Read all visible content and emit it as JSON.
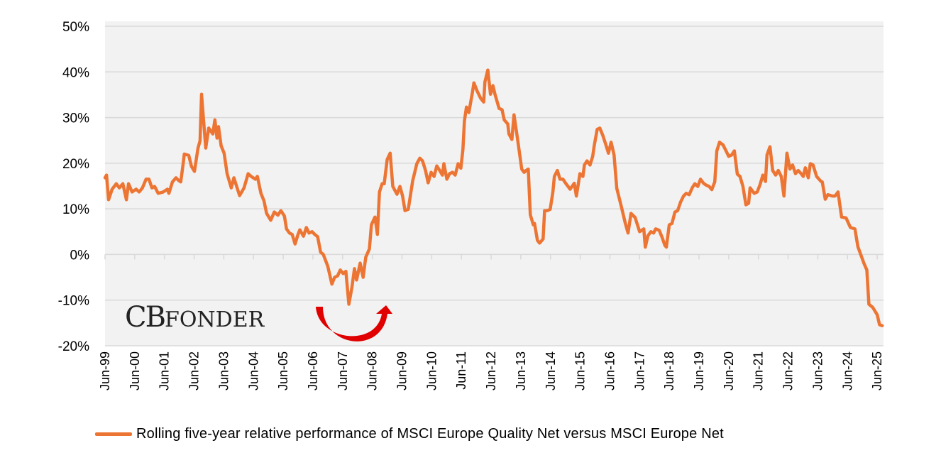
{
  "logo": {
    "text_big": "CB",
    "text_small": "FONDER"
  },
  "colors": {
    "line": "#ED7534",
    "plot_bg": "#F2F2F2",
    "grid": "#D9D9D9",
    "arrow": "#E00000"
  },
  "annotation": {
    "icon": "red-curved-rebound-arrow"
  },
  "chart_data": {
    "type": "line",
    "title": "",
    "xlabel": "",
    "ylabel": "",
    "ylim": [
      -20,
      50
    ],
    "yticks": [
      -20,
      -10,
      0,
      10,
      20,
      30,
      40,
      50
    ],
    "ytick_labels": [
      "-20%",
      "-10%",
      "0%",
      "10%",
      "20%",
      "30%",
      "40%",
      "50%"
    ],
    "xlim": [
      1999.5,
      2025.7
    ],
    "xtick_labels": [
      "Jun-99",
      "Jun-00",
      "Jun-01",
      "Jun-02",
      "Jun-03",
      "Jun-04",
      "Jun-05",
      "Jun-06",
      "Jun-07",
      "Jun-08",
      "Jun-09",
      "Jun-10",
      "Jun-11",
      "Jun-12",
      "Jun-13",
      "Jun-14",
      "Jun-15",
      "Jun-16",
      "Jun-17",
      "Jun-18",
      "Jun-19",
      "Jun-20",
      "Jun-21",
      "Jun-22",
      "Jun-23",
      "Jun-24",
      "Jun-25"
    ],
    "grid": true,
    "legend_position": "bottom",
    "series": [
      {
        "name": "Rolling five-year relative performance of MSCI Europe Quality Net versus MSCI Europe Net",
        "points": [
          [
            1999.5,
            16.8
          ],
          [
            1999.55,
            17.4
          ],
          [
            1999.62,
            12
          ],
          [
            1999.74,
            14.3
          ],
          [
            1999.88,
            15.5
          ],
          [
            1999.98,
            14.6
          ],
          [
            2000.1,
            15.5
          ],
          [
            2000.22,
            12
          ],
          [
            2000.29,
            15.5
          ],
          [
            2000.41,
            13.7
          ],
          [
            2000.55,
            14.3
          ],
          [
            2000.65,
            13.7
          ],
          [
            2000.76,
            14.6
          ],
          [
            2000.88,
            16.5
          ],
          [
            2000.98,
            16.5
          ],
          [
            2001.08,
            14.6
          ],
          [
            2001.17,
            14.9
          ],
          [
            2001.29,
            13.4
          ],
          [
            2001.46,
            13.7
          ],
          [
            2001.6,
            14.3
          ],
          [
            2001.65,
            13.4
          ],
          [
            2001.77,
            15.9
          ],
          [
            2001.89,
            16.8
          ],
          [
            2001.98,
            16.2
          ],
          [
            2002.05,
            15.9
          ],
          [
            2002.13,
            19.9
          ],
          [
            2002.17,
            22
          ],
          [
            2002.32,
            21.7
          ],
          [
            2002.41,
            19.3
          ],
          [
            2002.51,
            18.2
          ],
          [
            2002.63,
            23.3
          ],
          [
            2002.7,
            24.9
          ],
          [
            2002.75,
            35.1
          ],
          [
            2002.89,
            23.3
          ],
          [
            2002.99,
            27.7
          ],
          [
            2003.13,
            26.4
          ],
          [
            2003.2,
            29.5
          ],
          [
            2003.27,
            25.5
          ],
          [
            2003.32,
            28
          ],
          [
            2003.41,
            23.8
          ],
          [
            2003.51,
            22.2
          ],
          [
            2003.61,
            17.7
          ],
          [
            2003.75,
            14.6
          ],
          [
            2003.84,
            16.8
          ],
          [
            2004.03,
            12.9
          ],
          [
            2004.18,
            14.6
          ],
          [
            2004.32,
            17.7
          ],
          [
            2004.42,
            17.1
          ],
          [
            2004.56,
            16.5
          ],
          [
            2004.63,
            17.1
          ],
          [
            2004.75,
            13.4
          ],
          [
            2004.85,
            11.8
          ],
          [
            2004.94,
            9
          ],
          [
            2005.08,
            7.5
          ],
          [
            2005.2,
            9.3
          ],
          [
            2005.32,
            8.6
          ],
          [
            2005.42,
            9.6
          ],
          [
            2005.54,
            8.4
          ],
          [
            2005.61,
            5.6
          ],
          [
            2005.71,
            4.7
          ],
          [
            2005.8,
            4.4
          ],
          [
            2005.9,
            2.3
          ],
          [
            2006.0,
            4.4
          ],
          [
            2006.06,
            5.4
          ],
          [
            2006.18,
            4
          ],
          [
            2006.28,
            5.9
          ],
          [
            2006.37,
            4.7
          ],
          [
            2006.47,
            5
          ],
          [
            2006.56,
            4.4
          ],
          [
            2006.66,
            3.9
          ],
          [
            2006.76,
            0.5
          ],
          [
            2006.85,
            0
          ],
          [
            2007.0,
            -2.6
          ],
          [
            2007.14,
            -6.5
          ],
          [
            2007.23,
            -5
          ],
          [
            2007.33,
            -4.7
          ],
          [
            2007.42,
            -3.4
          ],
          [
            2007.52,
            -4.2
          ],
          [
            2007.61,
            -3.7
          ],
          [
            2007.71,
            -10.9
          ],
          [
            2007.81,
            -7.3
          ],
          [
            2007.9,
            -3.1
          ],
          [
            2007.97,
            -5.6
          ],
          [
            2008.09,
            -1.9
          ],
          [
            2008.19,
            -5
          ],
          [
            2008.28,
            -0.6
          ],
          [
            2008.4,
            1.2
          ],
          [
            2008.47,
            6.5
          ],
          [
            2008.59,
            8.2
          ],
          [
            2008.67,
            4.4
          ],
          [
            2008.74,
            13.7
          ],
          [
            2008.83,
            15.5
          ],
          [
            2008.9,
            15.5
          ],
          [
            2009.0,
            20.8
          ],
          [
            2009.1,
            22.2
          ],
          [
            2009.19,
            14.9
          ],
          [
            2009.33,
            13.2
          ],
          [
            2009.43,
            14.9
          ],
          [
            2009.52,
            12.8
          ],
          [
            2009.6,
            9.6
          ],
          [
            2009.71,
            9.9
          ],
          [
            2009.86,
            16.2
          ],
          [
            2010.0,
            19.9
          ],
          [
            2010.1,
            21.1
          ],
          [
            2010.19,
            20.5
          ],
          [
            2010.29,
            18.4
          ],
          [
            2010.38,
            15.7
          ],
          [
            2010.48,
            18.0
          ],
          [
            2010.58,
            17.1
          ],
          [
            2010.67,
            19.4
          ],
          [
            2010.77,
            18.4
          ],
          [
            2010.86,
            17.4
          ],
          [
            2010.91,
            19.9
          ],
          [
            2011.01,
            16.5
          ],
          [
            2011.1,
            17.7
          ],
          [
            2011.2,
            18.0
          ],
          [
            2011.29,
            17.4
          ],
          [
            2011.39,
            19.9
          ],
          [
            2011.48,
            18.9
          ],
          [
            2011.55,
            23
          ],
          [
            2011.6,
            29.2
          ],
          [
            2011.67,
            32.3
          ],
          [
            2011.75,
            31.1
          ],
          [
            2011.87,
            35.5
          ],
          [
            2011.92,
            37.6
          ],
          [
            2012.03,
            35.8
          ],
          [
            2012.15,
            34.2
          ],
          [
            2012.25,
            33.4
          ],
          [
            2012.29,
            37.8
          ],
          [
            2012.39,
            40.4
          ],
          [
            2012.48,
            35.1
          ],
          [
            2012.56,
            37
          ],
          [
            2012.63,
            35.1
          ],
          [
            2012.77,
            32
          ],
          [
            2012.87,
            31.7
          ],
          [
            2012.94,
            29.5
          ],
          [
            2013.06,
            28.6
          ],
          [
            2013.1,
            26.4
          ],
          [
            2013.2,
            25.2
          ],
          [
            2013.27,
            30.6
          ],
          [
            2013.39,
            25.3
          ],
          [
            2013.53,
            18.7
          ],
          [
            2013.61,
            18.0
          ],
          [
            2013.68,
            18.4
          ],
          [
            2013.75,
            18.7
          ],
          [
            2013.82,
            8.7
          ],
          [
            2013.92,
            6.5
          ],
          [
            2013.96,
            6.8
          ],
          [
            2014.06,
            3.1
          ],
          [
            2014.13,
            2.5
          ],
          [
            2014.25,
            3.4
          ],
          [
            2014.3,
            9.6
          ],
          [
            2014.39,
            9.6
          ],
          [
            2014.49,
            9.9
          ],
          [
            2014.58,
            13.7
          ],
          [
            2014.63,
            17.1
          ],
          [
            2014.73,
            18.4
          ],
          [
            2014.82,
            16.5
          ],
          [
            2014.92,
            16.5
          ],
          [
            2015.01,
            15.6
          ],
          [
            2015.16,
            14.3
          ],
          [
            2015.3,
            15.6
          ],
          [
            2015.37,
            12.8
          ],
          [
            2015.44,
            15.6
          ],
          [
            2015.49,
            17.7
          ],
          [
            2015.59,
            17.1
          ],
          [
            2015.64,
            19.6
          ],
          [
            2015.73,
            20.5
          ],
          [
            2015.83,
            19.6
          ],
          [
            2015.92,
            21.5
          ],
          [
            2015.97,
            23.8
          ],
          [
            2016.07,
            27.4
          ],
          [
            2016.16,
            27.7
          ],
          [
            2016.26,
            26.1
          ],
          [
            2016.35,
            24.3
          ],
          [
            2016.45,
            22.2
          ],
          [
            2016.54,
            24.6
          ],
          [
            2016.64,
            21.8
          ],
          [
            2016.73,
            14.5
          ],
          [
            2016.88,
            10.6
          ],
          [
            2017.02,
            6.8
          ],
          [
            2017.11,
            4.7
          ],
          [
            2017.21,
            9
          ],
          [
            2017.35,
            8.1
          ],
          [
            2017.5,
            5
          ],
          [
            2017.64,
            5.6
          ],
          [
            2017.69,
            1.6
          ],
          [
            2017.78,
            4.1
          ],
          [
            2017.88,
            5
          ],
          [
            2017.97,
            4.7
          ],
          [
            2018.04,
            5.6
          ],
          [
            2018.16,
            5.3
          ],
          [
            2018.26,
            3.7
          ],
          [
            2018.35,
            2
          ],
          [
            2018.4,
            1.6
          ],
          [
            2018.5,
            6.5
          ],
          [
            2018.59,
            6.8
          ],
          [
            2018.69,
            9.3
          ],
          [
            2018.78,
            9.6
          ],
          [
            2018.88,
            11.5
          ],
          [
            2018.98,
            12.8
          ],
          [
            2019.07,
            13.4
          ],
          [
            2019.17,
            13.1
          ],
          [
            2019.27,
            14.6
          ],
          [
            2019.36,
            15.5
          ],
          [
            2019.46,
            14.9
          ],
          [
            2019.55,
            16.5
          ],
          [
            2019.65,
            15.6
          ],
          [
            2019.74,
            15.2
          ],
          [
            2019.84,
            14.9
          ],
          [
            2019.93,
            14.2
          ],
          [
            2020.03,
            15.9
          ],
          [
            2020.1,
            22.7
          ],
          [
            2020.19,
            24.6
          ],
          [
            2020.31,
            24.0
          ],
          [
            2020.41,
            22.7
          ],
          [
            2020.5,
            21.5
          ],
          [
            2020.6,
            21.8
          ],
          [
            2020.69,
            22.7
          ],
          [
            2020.79,
            17.6
          ],
          [
            2020.88,
            17.1
          ],
          [
            2020.98,
            14.9
          ],
          [
            2021.08,
            10.9
          ],
          [
            2021.17,
            11.2
          ],
          [
            2021.22,
            14.6
          ],
          [
            2021.36,
            13.4
          ],
          [
            2021.46,
            13.7
          ],
          [
            2021.55,
            15.2
          ],
          [
            2021.65,
            17.4
          ],
          [
            2021.74,
            16.0
          ],
          [
            2021.79,
            21.8
          ],
          [
            2021.89,
            23.6
          ],
          [
            2021.98,
            18.4
          ],
          [
            2022.08,
            17.4
          ],
          [
            2022.17,
            18.4
          ],
          [
            2022.27,
            17.1
          ],
          [
            2022.36,
            12.8
          ],
          [
            2022.46,
            22.2
          ],
          [
            2022.56,
            18.7
          ],
          [
            2022.65,
            19.6
          ],
          [
            2022.75,
            17.7
          ],
          [
            2022.84,
            18.4
          ],
          [
            2022.94,
            17.7
          ],
          [
            2023.01,
            17.1
          ],
          [
            2023.08,
            19.0
          ],
          [
            2023.18,
            16.8
          ],
          [
            2023.25,
            19.9
          ],
          [
            2023.34,
            19.6
          ],
          [
            2023.46,
            17.1
          ],
          [
            2023.61,
            16.0
          ],
          [
            2023.65,
            15.9
          ],
          [
            2023.75,
            12.1
          ],
          [
            2023.84,
            13.1
          ],
          [
            2023.99,
            12.8
          ],
          [
            2024.08,
            12.8
          ],
          [
            2024.18,
            13.7
          ],
          [
            2024.3,
            8.2
          ],
          [
            2024.45,
            8.0
          ],
          [
            2024.6,
            5.9
          ],
          [
            2024.75,
            5.6
          ],
          [
            2024.85,
            1.7
          ],
          [
            2025.05,
            -1.9
          ],
          [
            2025.15,
            -3.4
          ],
          [
            2025.22,
            -10.9
          ],
          [
            2025.35,
            -11.6
          ],
          [
            2025.5,
            -13.2
          ],
          [
            2025.58,
            -15.4
          ],
          [
            2025.67,
            -15.6
          ]
        ]
      }
    ]
  }
}
